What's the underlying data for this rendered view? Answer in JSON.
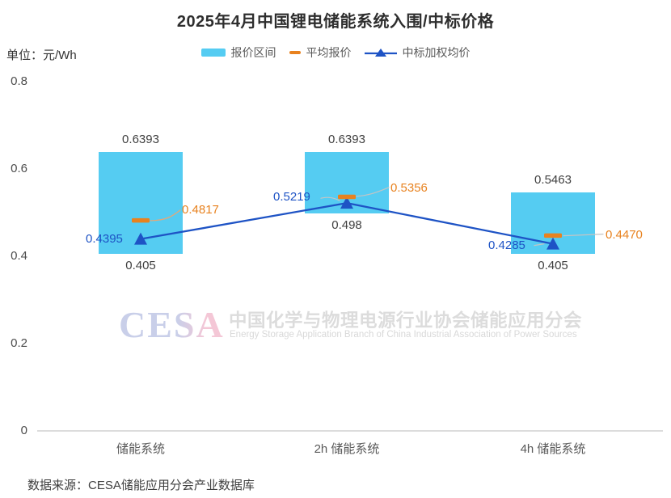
{
  "title": "2025年4月中国锂电储能系统入围/中标价格",
  "unit_label": "单位：元/Wh",
  "legend": {
    "range": "报价区间",
    "avg": "平均报价",
    "weighted": "中标加权均价"
  },
  "colors": {
    "bar": "#55CCF2",
    "avg": "#E8821F",
    "weighted": "#1E53C5",
    "leader": "#C4C4C4",
    "leader_orange": "#E5A878",
    "wm_blue": "#C9CFE9",
    "wm_pink": "#F4C7D6"
  },
  "chart_data": {
    "type": "bar",
    "subtype": "floating-range-bars-with-line-and-dash-markers",
    "title": "2025年4月中国锂电储能系统入围/中标价格",
    "unit": "元/Wh",
    "categories": [
      "储能系统",
      "2h 储能系统",
      "4h 储能系统"
    ],
    "series": [
      {
        "name": "报价区间",
        "type": "range_bar",
        "low": [
          0.405,
          0.498,
          0.405
        ],
        "high": [
          0.6393,
          0.6393,
          0.5463
        ]
      },
      {
        "name": "平均报价",
        "type": "dash_marker",
        "values": [
          0.4817,
          0.5356,
          0.447
        ]
      },
      {
        "name": "中标加权均价",
        "type": "line_triangle_marker",
        "values": [
          0.4395,
          0.5219,
          0.4285
        ]
      }
    ],
    "labels": {
      "high": [
        "0.6393",
        "0.6393",
        "0.5463"
      ],
      "low": [
        "0.405",
        "0.498",
        "0.405"
      ],
      "avg": [
        "0.4817",
        "0.5356",
        "0.4470"
      ],
      "weighted": [
        "0.4395",
        "0.5219",
        "0.4285"
      ]
    },
    "y_ticks": {
      "values": [
        0.8,
        0.6,
        0.4,
        0.2,
        0
      ],
      "labels": [
        "0.8",
        "0.6",
        "0.4",
        "0.2",
        "0"
      ]
    },
    "ylim": [
      0,
      0.8
    ],
    "legend_position": "top",
    "grid": "off"
  },
  "watermark": {
    "logo": "CESA",
    "cn": "中国化学与物理电源行业协会储能应用分会",
    "en": "Energy Storage Application Branch of China Industrial Association of Power Sources"
  },
  "source": "数据来源：CESA储能应用分会产业数据库"
}
